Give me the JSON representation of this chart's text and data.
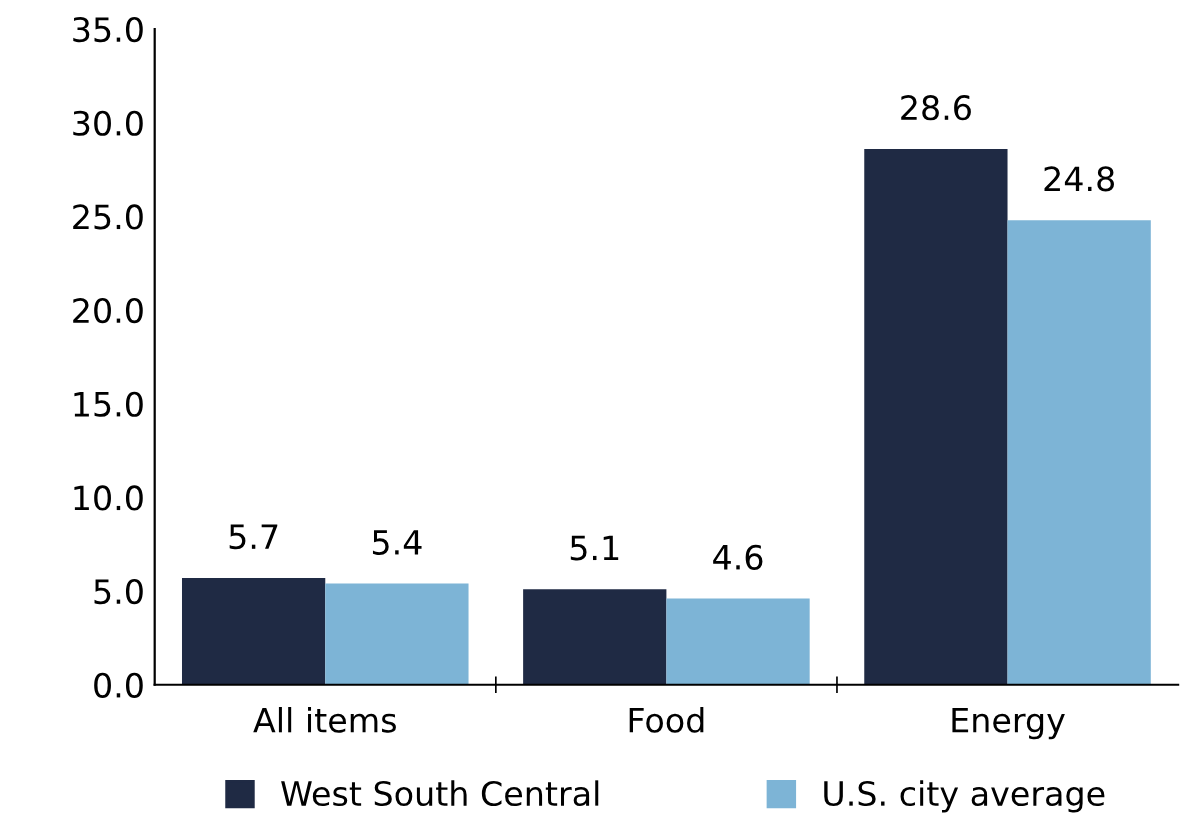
{
  "chart_data": {
    "type": "bar",
    "categories": [
      "All items",
      "Food",
      "Energy"
    ],
    "series": [
      {
        "name": "West South Central",
        "color": "#1f2a44",
        "values": [
          5.7,
          5.1,
          28.6
        ]
      },
      {
        "name": "U.S. city average",
        "color": "#7db4d6",
        "values": [
          5.4,
          4.6,
          24.8
        ]
      }
    ],
    "ylim": [
      0,
      35
    ],
    "yticks": [
      {
        "value": 0,
        "label": "0.0"
      },
      {
        "value": 5,
        "label": "5.0"
      },
      {
        "value": 10,
        "label": "10.0"
      },
      {
        "value": 15,
        "label": "15.0"
      },
      {
        "value": 20,
        "label": "20.0"
      },
      {
        "value": 25,
        "label": "25.0"
      },
      {
        "value": 30,
        "label": "30.0"
      },
      {
        "value": 35,
        "label": "35.0"
      }
    ],
    "data_labels": true,
    "grid": false,
    "legend": "bottom"
  }
}
